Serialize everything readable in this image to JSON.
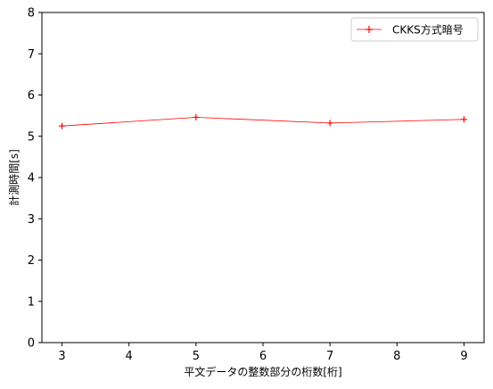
{
  "chart_data": {
    "type": "line",
    "title": "",
    "xlabel": "平文データの整数部分の桁数[桁]",
    "ylabel": "計測時間[s]",
    "x": [
      3,
      5,
      7,
      9
    ],
    "series": [
      {
        "name": "CKKS方式暗号",
        "values": [
          5.25,
          5.46,
          5.32,
          5.41
        ],
        "color": "#ff0000",
        "marker": "+"
      }
    ],
    "xticks": [
      "3",
      "4",
      "5",
      "6",
      "7",
      "8",
      "9"
    ],
    "yticks": [
      "0",
      "1",
      "2",
      "3",
      "4",
      "5",
      "6",
      "7",
      "8"
    ],
    "xlim": [
      2.7,
      9.3
    ],
    "ylim": [
      0,
      8
    ],
    "grid": false,
    "legend_position": "top-right"
  }
}
